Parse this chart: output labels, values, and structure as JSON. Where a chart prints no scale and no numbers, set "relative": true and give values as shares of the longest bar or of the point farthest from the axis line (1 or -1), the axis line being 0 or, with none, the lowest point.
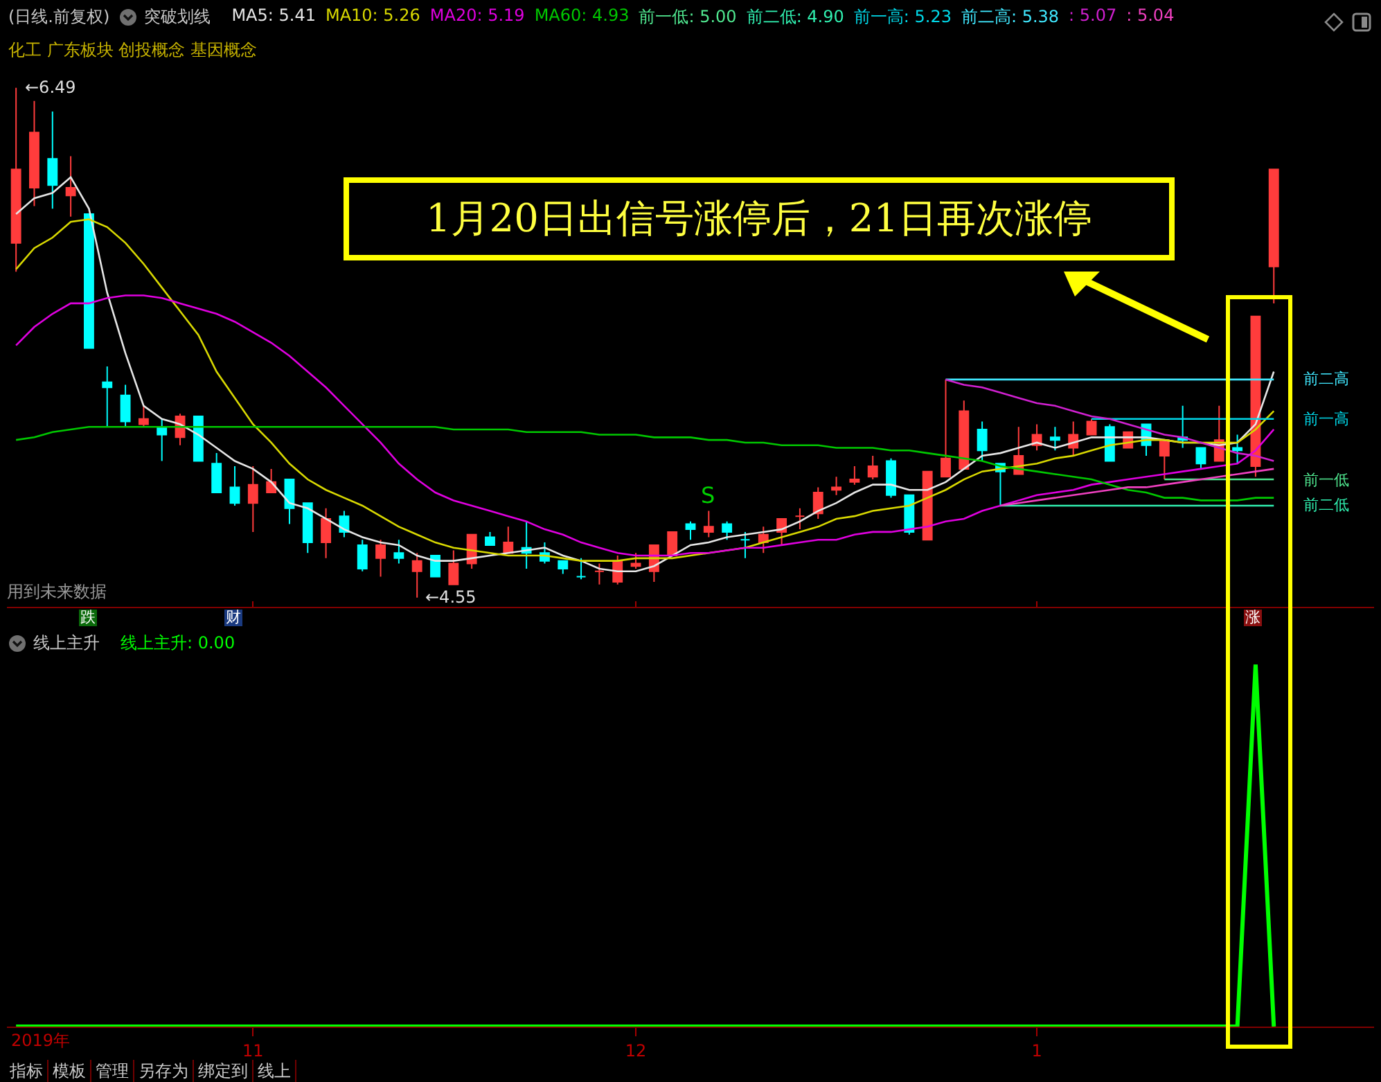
{
  "chart_data": [
    {
      "type": "candlestick",
      "title": "(日线.前复权)",
      "subtitle": "化工 广东板块 创投概念 基因概念",
      "legend_title": "突破划线",
      "tick_labels": false,
      "categories": [
        null,
        null,
        null,
        null,
        null,
        null,
        null,
        null,
        null,
        null,
        null,
        null,
        null,
        "11",
        null,
        null,
        null,
        null,
        null,
        null,
        null,
        null,
        null,
        null,
        null,
        null,
        null,
        null,
        null,
        null,
        null,
        null,
        null,
        null,
        "12",
        null,
        null,
        null,
        null,
        null,
        null,
        null,
        null,
        null,
        null,
        null,
        null,
        null,
        null,
        null,
        null,
        null,
        null,
        null,
        null,
        null,
        "1",
        null,
        null,
        null,
        null,
        null,
        null,
        null,
        null,
        null,
        null,
        null,
        null,
        null
      ],
      "ohlc": [
        [
          5.9,
          6.49,
          5.79,
          6.18
        ],
        [
          6.11,
          6.44,
          6.04,
          6.32
        ],
        [
          6.22,
          6.4,
          6.03,
          6.12
        ],
        [
          6.08,
          6.23,
          6.0,
          6.11
        ],
        [
          6.01,
          6.01,
          5.5,
          5.5
        ],
        [
          5.37,
          5.43,
          5.2,
          5.35
        ],
        [
          5.32,
          5.36,
          5.2,
          5.22
        ],
        [
          5.21,
          5.28,
          5.2,
          5.23
        ],
        [
          5.2,
          5.23,
          5.07,
          5.17
        ],
        [
          5.16,
          5.25,
          5.13,
          5.24
        ],
        [
          5.24,
          5.24,
          5.07,
          5.07
        ],
        [
          5.06,
          5.1,
          4.95,
          4.95
        ],
        [
          4.97,
          5.05,
          4.9,
          4.91
        ],
        [
          4.91,
          5.05,
          4.8,
          4.98
        ],
        [
          4.95,
          5.04,
          4.95,
          4.99
        ],
        [
          5.0,
          5.0,
          4.83,
          4.89
        ],
        [
          4.91,
          4.91,
          4.72,
          4.76
        ],
        [
          4.76,
          4.89,
          4.7,
          4.85
        ],
        [
          4.86,
          4.88,
          4.78,
          4.8
        ],
        [
          4.75,
          4.77,
          4.65,
          4.66
        ],
        [
          4.7,
          4.77,
          4.63,
          4.75
        ],
        [
          4.72,
          4.77,
          4.68,
          4.7
        ],
        [
          4.65,
          4.72,
          4.55,
          4.69
        ],
        [
          4.71,
          4.71,
          4.63,
          4.63
        ],
        [
          4.6,
          4.73,
          4.6,
          4.68
        ],
        [
          4.68,
          4.79,
          4.66,
          4.79
        ],
        [
          4.78,
          4.8,
          4.75,
          4.75
        ],
        [
          4.72,
          4.82,
          4.72,
          4.76
        ],
        [
          4.74,
          4.84,
          4.66,
          4.72
        ],
        [
          4.72,
          4.76,
          4.68,
          4.69
        ],
        [
          4.69,
          4.69,
          4.64,
          4.66
        ],
        [
          4.63,
          4.7,
          4.62,
          4.63
        ],
        [
          4.65,
          4.68,
          4.6,
          4.65
        ],
        [
          4.61,
          4.71,
          4.6,
          4.69
        ],
        [
          4.67,
          4.72,
          4.66,
          4.68
        ],
        [
          4.65,
          4.75,
          4.61,
          4.75
        ],
        [
          4.71,
          4.8,
          4.71,
          4.8
        ],
        [
          4.83,
          4.84,
          4.77,
          4.81
        ],
        [
          4.8,
          4.88,
          4.78,
          4.82
        ],
        [
          4.83,
          4.84,
          4.77,
          4.8
        ],
        [
          4.77,
          4.8,
          4.7,
          4.77
        ],
        [
          4.76,
          4.82,
          4.72,
          4.79
        ],
        [
          4.8,
          4.85,
          4.75,
          4.85
        ],
        [
          4.86,
          4.89,
          4.81,
          4.86
        ],
        [
          4.87,
          4.97,
          4.85,
          4.95
        ],
        [
          4.96,
          5.01,
          4.94,
          4.97
        ],
        [
          4.99,
          5.05,
          4.98,
          5.0
        ],
        [
          5.01,
          5.09,
          5.0,
          5.05
        ],
        [
          5.07,
          5.08,
          4.93,
          4.94
        ],
        [
          4.94,
          4.94,
          4.79,
          4.8
        ],
        [
          4.77,
          5.03,
          4.77,
          5.03
        ],
        [
          5.01,
          5.38,
          5.01,
          5.08
        ],
        [
          5.04,
          5.3,
          5.04,
          5.26
        ],
        [
          5.19,
          5.22,
          5.07,
          5.11
        ],
        [
          5.06,
          5.06,
          4.9,
          5.03
        ],
        [
          5.02,
          5.2,
          5.02,
          5.09
        ],
        [
          5.13,
          5.21,
          5.11,
          5.17
        ],
        [
          5.16,
          5.2,
          5.11,
          5.15
        ],
        [
          5.12,
          5.22,
          5.09,
          5.17
        ],
        [
          5.17,
          5.23,
          5.17,
          5.22
        ],
        [
          5.2,
          5.21,
          5.07,
          5.07
        ],
        [
          5.12,
          5.18,
          5.12,
          5.18
        ],
        [
          5.21,
          5.21,
          5.09,
          5.13
        ],
        [
          5.09,
          5.15,
          5.0,
          5.15
        ],
        [
          5.16,
          5.28,
          5.12,
          5.15
        ],
        [
          5.12,
          5.12,
          5.04,
          5.06
        ],
        [
          5.07,
          5.28,
          5.07,
          5.15
        ],
        [
          5.12,
          5.17,
          5.06,
          5.11
        ],
        [
          5.05,
          5.62,
          5.01,
          5.62
        ],
        [
          5.81,
          6.18,
          5.67,
          6.18
        ]
      ],
      "series": [
        {
          "type": "line",
          "name": "MA5: 5.41",
          "color": "#e6e6e6",
          "values": [
            6.01,
            6.07,
            6.09,
            6.15,
            6.03,
            5.71,
            5.48,
            5.28,
            5.23,
            5.21,
            5.17,
            5.12,
            5.07,
            5.04,
            4.99,
            4.91,
            4.89,
            4.85,
            4.81,
            4.78,
            4.76,
            4.75,
            4.71,
            4.69,
            4.69,
            4.7,
            4.71,
            4.72,
            4.73,
            4.74,
            4.71,
            4.69,
            4.66,
            4.65,
            4.65,
            4.67,
            4.71,
            4.75,
            4.76,
            4.78,
            4.79,
            4.8,
            4.81,
            4.84,
            4.88,
            4.91,
            4.95,
            4.98,
            4.98,
            4.96,
            4.96,
            4.99,
            5.04,
            5.09,
            5.1,
            5.12,
            5.14,
            5.12,
            5.14,
            5.16,
            5.16,
            5.16,
            5.16,
            5.15,
            5.14,
            5.14,
            5.13,
            5.14,
            5.21,
            5.41
          ]
        },
        {
          "type": "line",
          "name": "MA10: 5.26",
          "color": "#d8d800",
          "values": [
            5.8,
            5.88,
            5.92,
            5.98,
            5.99,
            5.96,
            5.9,
            5.82,
            5.73,
            5.64,
            5.55,
            5.41,
            5.31,
            5.21,
            5.14,
            5.06,
            5.0,
            4.96,
            4.93,
            4.9,
            4.86,
            4.82,
            4.79,
            4.76,
            4.74,
            4.73,
            4.72,
            4.71,
            4.71,
            4.71,
            4.7,
            4.69,
            4.69,
            4.69,
            4.7,
            4.7,
            4.7,
            4.71,
            4.72,
            4.73,
            4.74,
            4.76,
            4.78,
            4.8,
            4.82,
            4.85,
            4.86,
            4.88,
            4.89,
            4.9,
            4.93,
            4.96,
            5.0,
            5.03,
            5.04,
            5.05,
            5.06,
            5.08,
            5.09,
            5.11,
            5.13,
            5.14,
            5.15,
            5.15,
            5.14,
            5.14,
            5.14,
            5.14,
            5.19,
            5.26
          ]
        },
        {
          "type": "line",
          "name": "MA20: 5.19",
          "color": "#e000e0",
          "values": [
            5.51,
            5.58,
            5.63,
            5.67,
            5.67,
            5.69,
            5.7,
            5.7,
            5.69,
            5.67,
            5.65,
            5.63,
            5.6,
            5.56,
            5.52,
            5.47,
            5.41,
            5.35,
            5.28,
            5.21,
            5.14,
            5.06,
            5.0,
            4.95,
            4.92,
            4.9,
            4.88,
            4.86,
            4.84,
            4.81,
            4.79,
            4.76,
            4.74,
            4.72,
            4.71,
            4.71,
            4.71,
            4.72,
            4.72,
            4.73,
            4.74,
            4.74,
            4.75,
            4.76,
            4.77,
            4.77,
            4.79,
            4.8,
            4.8,
            4.81,
            4.82,
            4.84,
            4.85,
            4.88,
            4.9,
            4.92,
            4.94,
            4.95,
            4.96,
            4.98,
            4.99,
            5.0,
            5.01,
            5.02,
            5.03,
            5.04,
            5.05,
            5.06,
            5.11,
            5.19
          ]
        },
        {
          "type": "line",
          "name": "MA60: 4.93",
          "color": "#00c800",
          "values": [
            5.15,
            5.16,
            5.18,
            5.19,
            5.2,
            5.2,
            5.2,
            5.2,
            5.2,
            5.2,
            5.2,
            5.2,
            5.2,
            5.2,
            5.2,
            5.2,
            5.2,
            5.2,
            5.2,
            5.2,
            5.2,
            5.2,
            5.2,
            5.2,
            5.19,
            5.19,
            5.19,
            5.19,
            5.18,
            5.18,
            5.18,
            5.18,
            5.17,
            5.17,
            5.17,
            5.16,
            5.16,
            5.16,
            5.15,
            5.15,
            5.14,
            5.14,
            5.13,
            5.13,
            5.13,
            5.12,
            5.12,
            5.12,
            5.11,
            5.11,
            5.1,
            5.09,
            5.08,
            5.07,
            5.05,
            5.04,
            5.03,
            5.02,
            5.01,
            5.0,
            4.98,
            4.96,
            4.95,
            4.93,
            4.93,
            4.92,
            4.92,
            4.92,
            4.93,
            4.93
          ]
        },
        {
          "type": "line",
          "name": "前一低: 5.00",
          "color": "#50e890",
          "values": [
            null,
            null,
            null,
            null,
            null,
            null,
            null,
            null,
            null,
            null,
            null,
            null,
            null,
            null,
            null,
            null,
            null,
            null,
            null,
            null,
            null,
            null,
            null,
            null,
            null,
            null,
            null,
            null,
            null,
            null,
            null,
            null,
            null,
            null,
            null,
            null,
            null,
            null,
            null,
            null,
            null,
            null,
            null,
            null,
            null,
            null,
            null,
            null,
            null,
            null,
            null,
            null,
            null,
            null,
            null,
            null,
            null,
            null,
            null,
            null,
            null,
            null,
            null,
            5.0,
            5.0,
            5.0,
            5.0,
            5.0,
            5.0,
            5.0
          ]
        },
        {
          "type": "line",
          "name": "前二低: 4.90",
          "color": "#30f0b0",
          "values": [
            null,
            null,
            null,
            null,
            null,
            null,
            null,
            null,
            null,
            null,
            null,
            null,
            null,
            null,
            null,
            null,
            null,
            null,
            null,
            null,
            null,
            null,
            null,
            null,
            null,
            null,
            null,
            null,
            null,
            null,
            null,
            null,
            null,
            null,
            null,
            null,
            null,
            null,
            null,
            null,
            null,
            null,
            null,
            null,
            null,
            null,
            null,
            null,
            null,
            null,
            null,
            null,
            null,
            null,
            4.9,
            4.9,
            4.9,
            4.9,
            4.9,
            4.9,
            4.9,
            4.9,
            4.9,
            4.9,
            4.9,
            4.9,
            4.9,
            4.9,
            4.9,
            4.9
          ]
        },
        {
          "type": "line",
          "name": "前一高: 5.23",
          "color": "#00d8e8",
          "values": [
            null,
            null,
            null,
            null,
            null,
            null,
            null,
            null,
            null,
            null,
            null,
            null,
            null,
            null,
            null,
            null,
            null,
            null,
            null,
            null,
            null,
            null,
            null,
            null,
            null,
            null,
            null,
            null,
            null,
            null,
            null,
            null,
            null,
            null,
            null,
            null,
            null,
            null,
            null,
            null,
            null,
            null,
            null,
            null,
            null,
            null,
            null,
            null,
            null,
            null,
            null,
            null,
            null,
            null,
            null,
            null,
            null,
            null,
            null,
            5.23,
            5.23,
            5.23,
            5.23,
            5.23,
            5.23,
            5.23,
            5.23,
            5.23,
            5.23,
            5.23
          ]
        },
        {
          "type": "line",
          "name": "前二高: 5.38",
          "color": "#40e8ff",
          "values": [
            null,
            null,
            null,
            null,
            null,
            null,
            null,
            null,
            null,
            null,
            null,
            null,
            null,
            null,
            null,
            null,
            null,
            null,
            null,
            null,
            null,
            null,
            null,
            null,
            null,
            null,
            null,
            null,
            null,
            null,
            null,
            null,
            null,
            null,
            null,
            null,
            null,
            null,
            null,
            null,
            null,
            null,
            null,
            null,
            null,
            null,
            null,
            null,
            null,
            null,
            null,
            5.38,
            5.38,
            5.38,
            5.38,
            5.38,
            5.38,
            5.38,
            5.38,
            5.38,
            5.38,
            5.38,
            5.38,
            5.38,
            5.38,
            5.38,
            5.38,
            5.38,
            5.38,
            5.38
          ]
        },
        {
          "type": "line",
          "name": ": 5.07",
          "color": "#d020d0",
          "values": [
            null,
            null,
            null,
            null,
            null,
            null,
            null,
            null,
            null,
            null,
            null,
            null,
            null,
            null,
            null,
            null,
            null,
            null,
            null,
            null,
            null,
            null,
            null,
            null,
            null,
            null,
            null,
            null,
            null,
            null,
            null,
            null,
            null,
            null,
            null,
            null,
            null,
            null,
            null,
            null,
            null,
            null,
            null,
            null,
            null,
            null,
            null,
            null,
            null,
            null,
            null,
            5.38,
            5.36,
            5.35,
            5.33,
            5.31,
            5.29,
            5.28,
            5.26,
            5.24,
            5.23,
            5.21,
            5.19,
            5.17,
            5.16,
            5.14,
            5.12,
            5.1,
            5.09,
            5.07
          ]
        },
        {
          "type": "line",
          "name": ": 5.04",
          "color": "#f040c0",
          "values": [
            null,
            null,
            null,
            null,
            null,
            null,
            null,
            null,
            null,
            null,
            null,
            null,
            null,
            null,
            null,
            null,
            null,
            null,
            null,
            null,
            null,
            null,
            null,
            null,
            null,
            null,
            null,
            null,
            null,
            null,
            null,
            null,
            null,
            null,
            null,
            null,
            null,
            null,
            null,
            null,
            null,
            null,
            null,
            null,
            null,
            null,
            null,
            null,
            null,
            null,
            null,
            null,
            null,
            null,
            4.9,
            4.91,
            4.92,
            4.93,
            4.94,
            4.95,
            4.96,
            4.97,
            4.97,
            4.98,
            4.99,
            5.0,
            5.01,
            5.02,
            5.03,
            5.04
          ]
        }
      ],
      "annotations": [
        "←6.49",
        "←4.55",
        "前一低",
        "前二低",
        "前一高",
        "前二高",
        "S",
        "跌",
        "财",
        "涨",
        "用到未来数据",
        "1月20日出信号涨停后，21日再次涨停"
      ]
    },
    {
      "type": "line",
      "title": "线上主升",
      "relative": true,
      "tick_labels": "x",
      "categories": [
        null,
        null,
        null,
        null,
        null,
        null,
        null,
        null,
        null,
        null,
        null,
        null,
        null,
        "11",
        null,
        null,
        null,
        null,
        null,
        null,
        null,
        null,
        null,
        null,
        null,
        null,
        null,
        null,
        null,
        null,
        null,
        null,
        null,
        null,
        "12",
        null,
        null,
        null,
        null,
        null,
        null,
        null,
        null,
        null,
        null,
        null,
        null,
        null,
        null,
        null,
        null,
        null,
        null,
        null,
        null,
        null,
        "1",
        null,
        null,
        null,
        null,
        null,
        null,
        null,
        null,
        null,
        null,
        null,
        null,
        null
      ],
      "series": [
        {
          "type": "line",
          "name": "线上主升: 0.00",
          "color": "#00ff00",
          "values": [
            0,
            0,
            0,
            0,
            0,
            0,
            0,
            0,
            0,
            0,
            0,
            0,
            0,
            0,
            0,
            0,
            0,
            0,
            0,
            0,
            0,
            0,
            0,
            0,
            0,
            0,
            0,
            0,
            0,
            0,
            0,
            0,
            0,
            0,
            0,
            0,
            0,
            0,
            0,
            0,
            0,
            0,
            0,
            0,
            0,
            0,
            0,
            0,
            0,
            0,
            0,
            0,
            0,
            0,
            0,
            0,
            0,
            0,
            0,
            0,
            0,
            0,
            0,
            0,
            0,
            0,
            0,
            0,
            1,
            0
          ]
        }
      ],
      "annotations": [
        "2019年",
        "指标",
        "模板",
        "管理",
        "另存为",
        "绑定到",
        "线上"
      ]
    }
  ]
}
